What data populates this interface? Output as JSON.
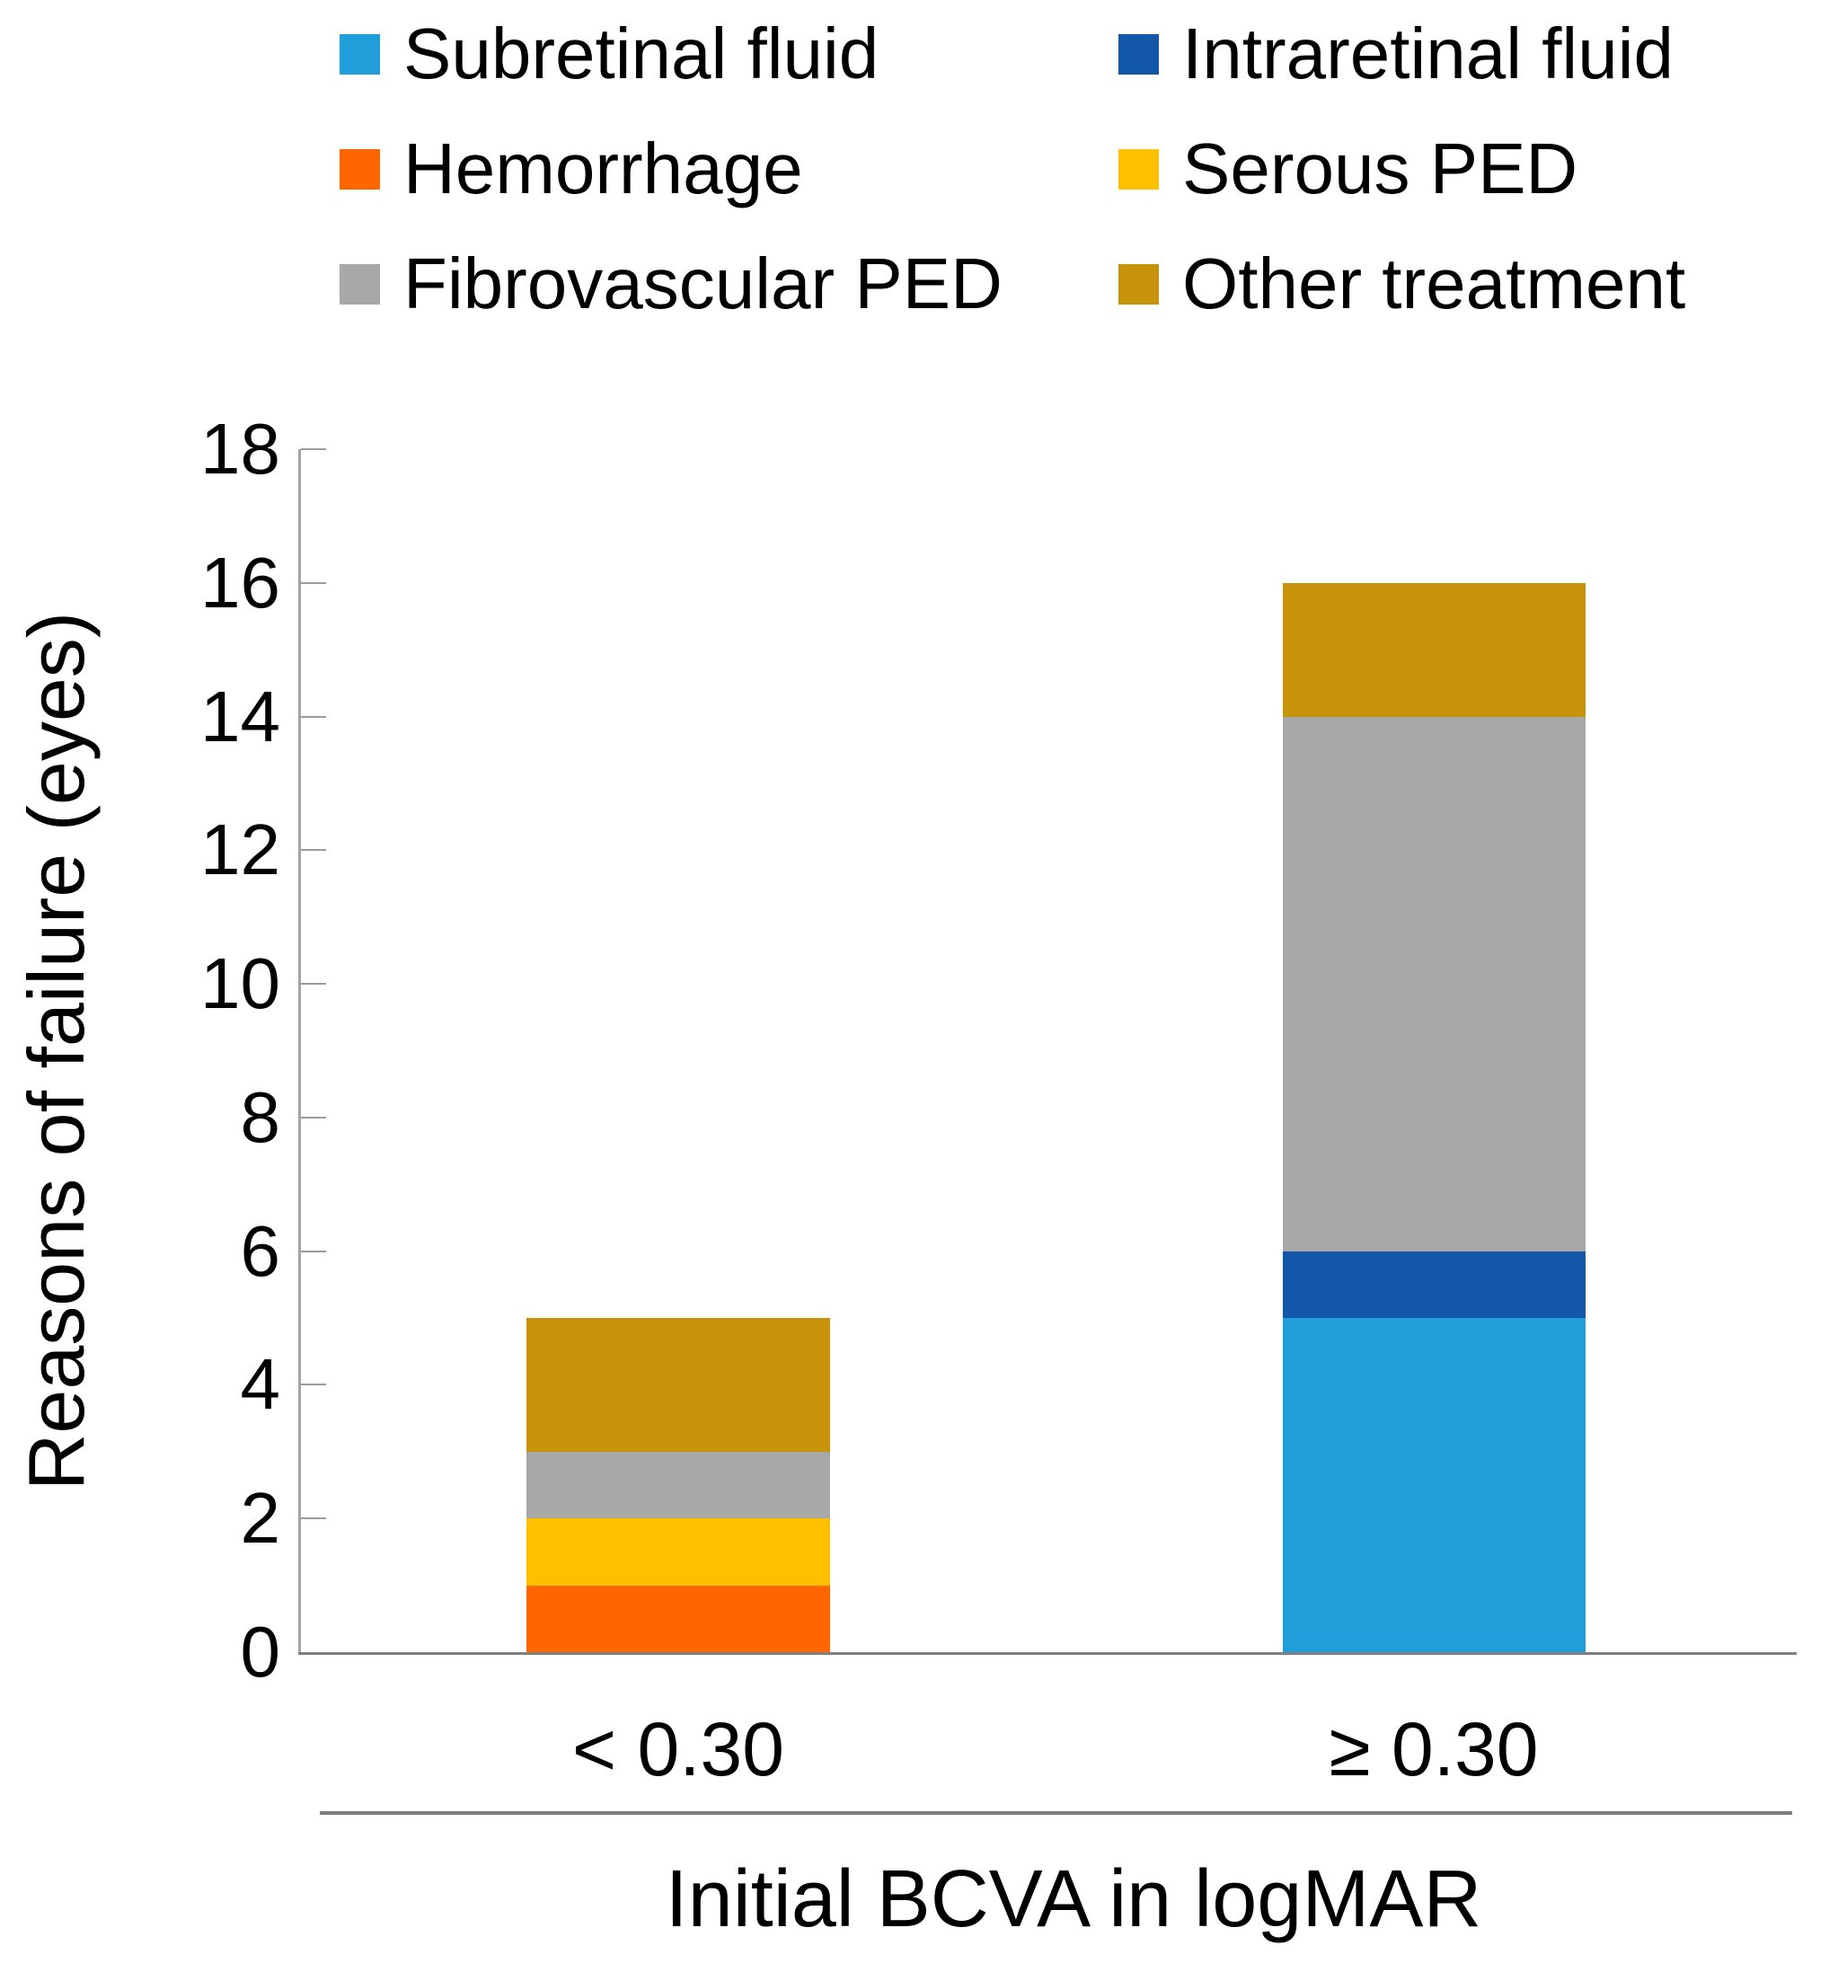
{
  "chart_data": {
    "type": "bar",
    "stacked": true,
    "title": "",
    "xlabel": "Initial BCVA in logMAR",
    "ylabel": "Reasons of failure (eyes)",
    "categories": [
      "< 0.30",
      "≥ 0.30"
    ],
    "series": [
      {
        "name": "Subretinal fluid",
        "color": "#1F9ED9",
        "values": [
          0,
          5
        ]
      },
      {
        "name": "Intraretinal fluid",
        "color": "#1358A8",
        "values": [
          0,
          1
        ]
      },
      {
        "name": "Hemorrhage",
        "color": "#FF6600",
        "values": [
          1,
          0
        ]
      },
      {
        "name": "Serous PED",
        "color": "#FFC000",
        "values": [
          1,
          0
        ]
      },
      {
        "name": "Fibrovascular PED",
        "color": "#A8A8A8",
        "values": [
          1,
          8
        ]
      },
      {
        "name": "Other treatment",
        "color": "#C6930A",
        "values": [
          2,
          2
        ]
      }
    ],
    "stack_order_bottom_to_top": [
      "Subretinal fluid",
      "Intraretinal fluid",
      "Hemorrhage",
      "Serous PED",
      "Fibrovascular PED",
      "Other treatment"
    ],
    "category_totals": [
      5,
      16
    ],
    "ylim": [
      0,
      18
    ],
    "ytick_step": 2,
    "yticks": [
      0,
      2,
      4,
      6,
      8,
      10,
      12,
      14,
      16,
      18
    ],
    "grid": false,
    "legend_position": "top",
    "legend_columns": 2,
    "legend_row_order": [
      [
        "Subretinal fluid",
        "Intraretinal fluid"
      ],
      [
        "Hemorrhage",
        "Serous PED"
      ],
      [
        "Fibrovascular PED",
        "Other treatment"
      ]
    ]
  },
  "colors": {
    "axis_line": "#A3A3A3",
    "tick_line": "#9B9B9B",
    "baseline": "#7F7F7F",
    "text": "#000000",
    "background": "#FFFFFF"
  }
}
